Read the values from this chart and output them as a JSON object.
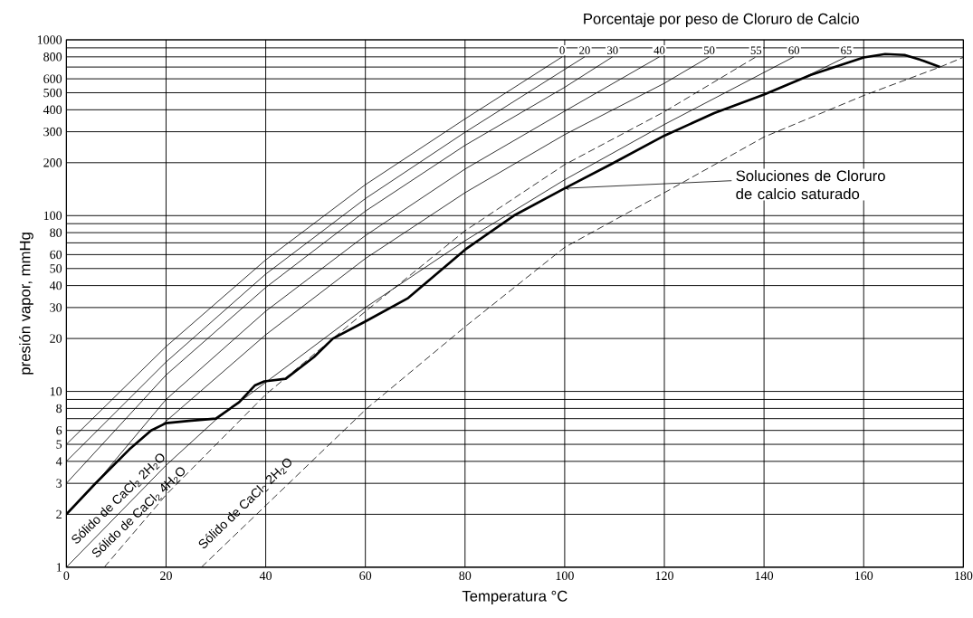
{
  "chart_data": {
    "type": "line",
    "title": "Porcentaje por peso de Cloruro de Calcio",
    "xlabel": "Temperatura °C",
    "ylabel": "presión vapor, mmHg",
    "xlim": [
      0,
      180
    ],
    "ylim": [
      1,
      1000
    ],
    "log": "y",
    "grid": true,
    "xticks": [
      0,
      20,
      40,
      60,
      80,
      100,
      120,
      140,
      160,
      180
    ],
    "yticks": [
      1,
      2,
      3,
      4,
      5,
      6,
      {
        "value": 7,
        "label": null
      },
      8,
      {
        "value": 9,
        "label": null
      },
      10,
      20,
      30,
      40,
      50,
      60,
      {
        "value": 70,
        "label": null
      },
      80,
      {
        "value": 90,
        "label": null
      },
      100,
      200,
      300,
      400,
      500,
      600,
      {
        "value": 700,
        "label": null
      },
      800,
      {
        "value": 900,
        "label": null
      },
      1000
    ],
    "series": [
      {
        "name": "0",
        "color": "#000000",
        "x": [
          0,
          20,
          40,
          60,
          80,
          99.5
        ],
        "values": [
          5,
          18,
          56,
          150,
          355,
          800
        ]
      },
      {
        "name": "20",
        "color": "#000000",
        "x": [
          0,
          20,
          40,
          60,
          80,
          104
        ],
        "values": [
          4,
          14.7,
          46.5,
          125,
          298,
          800
        ]
      },
      {
        "name": "30",
        "color": "#000000",
        "x": [
          0,
          20,
          40,
          60,
          80,
          100,
          109.6
        ],
        "values": [
          3,
          12.4,
          39,
          106,
          251,
          537,
          800
        ]
      },
      {
        "name": "40",
        "color": "#000000",
        "x": [
          5,
          20,
          40,
          60,
          80,
          100,
          119
        ],
        "values": [
          2.8,
          9,
          28.6,
          77,
          184,
          393,
          800
        ]
      },
      {
        "name": "50",
        "color": "#000000",
        "x": [
          19,
          40,
          60,
          80,
          100,
          120,
          129
        ],
        "values": [
          6.4,
          21,
          57,
          135,
          289,
          566,
          800
        ]
      },
      {
        "name": "55",
        "color": "#000000",
        "line_style": "dashed",
        "x": [
          7.6,
          20,
          40,
          60,
          80,
          100,
          120,
          138.4
        ],
        "values": [
          1,
          2.58,
          9.6,
          28.5,
          82,
          195,
          390,
          800
        ]
      },
      {
        "name": "60",
        "color": "#000000",
        "x": [
          0,
          20,
          30,
          60,
          80,
          100,
          120,
          146
        ],
        "values": [
          1,
          3.8,
          6.9,
          30,
          72,
          160,
          330,
          800
        ]
      },
      {
        "name": "65",
        "color": "#000000",
        "x": [
          148,
          156.5
        ],
        "values": [
          610,
          800
        ]
      },
      {
        "color": "#000000",
        "line_style": "dashed",
        "x": [
          27.1,
          60.3,
          80.3,
          100,
          120,
          140,
          160,
          175.3,
          180
        ],
        "values": [
          1,
          8,
          23.7,
          66,
          135,
          280,
          482,
          700,
          795
        ]
      },
      {
        "name": "Soluciones de Cloruro de calcio saturado",
        "color": "#000000",
        "x": [
          0,
          5.7,
          12.6,
          17,
          20,
          24.6,
          30,
          34.7,
          37.8,
          39.7,
          44,
          49.7,
          53.5,
          60,
          68.6,
          80,
          89.8,
          100,
          109.3,
          120,
          130,
          140,
          149.4,
          160,
          164.3,
          168.2,
          172,
          175.3
        ],
        "values": [
          2,
          2.97,
          4.67,
          6,
          6.6,
          6.8,
          7,
          8.7,
          10.8,
          11.4,
          11.8,
          15.7,
          20,
          25,
          34,
          64,
          100,
          143,
          196,
          285,
          383,
          488,
          632,
          794,
          830,
          820,
          760,
          700
        ]
      }
    ],
    "annotations": [
      "Sólido de CaCl$_{2}$ 2H$_{2}$O",
      "Sólido de CaCl$_{2}$ 4H$_{2}$O",
      "Sólido de CaCl$_{2}$ 2H$_{2}$O"
    ]
  }
}
